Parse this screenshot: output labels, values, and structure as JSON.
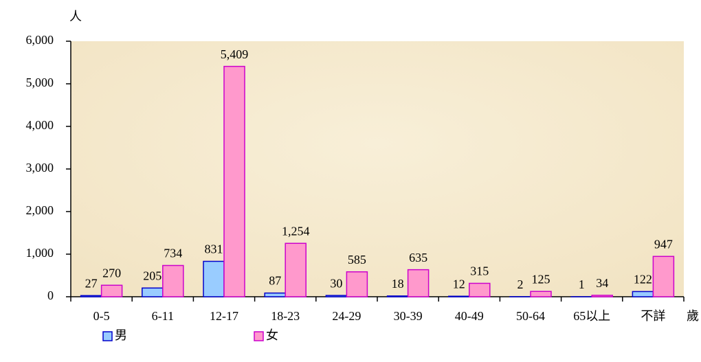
{
  "chart_data": {
    "type": "bar",
    "y_unit": "人",
    "x_unit": "歲",
    "categories": [
      "0-5",
      "6-11",
      "12-17",
      "18-23",
      "24-29",
      "30-39",
      "40-49",
      "50-64",
      "65以上",
      "不詳"
    ],
    "series": [
      {
        "name": "男",
        "color": "#99ccff",
        "border": "#0000cc",
        "values": [
          27,
          205,
          831,
          87,
          30,
          18,
          12,
          2,
          1,
          122
        ]
      },
      {
        "name": "女",
        "color": "#ff99cc",
        "border": "#cc00cc",
        "values": [
          270,
          734,
          5409,
          1254,
          585,
          635,
          315,
          125,
          34,
          947
        ],
        "value_labels": [
          "270",
          "734",
          "5,409",
          "1,254",
          "585",
          "635",
          "315",
          "125",
          "34",
          "947"
        ]
      }
    ],
    "ylim": [
      0,
      6000
    ],
    "yticks": [
      0,
      {
        "value": 1000,
        "label": "1,000"
      },
      {
        "value": 2000,
        "label": "2,000"
      },
      {
        "value": 3000,
        "label": "3,000"
      },
      {
        "value": 4000,
        "label": "4,000"
      },
      {
        "value": 5000,
        "label": "5,000"
      },
      {
        "value": 6000,
        "label": "6,000"
      }
    ],
    "legend": "bottom"
  }
}
